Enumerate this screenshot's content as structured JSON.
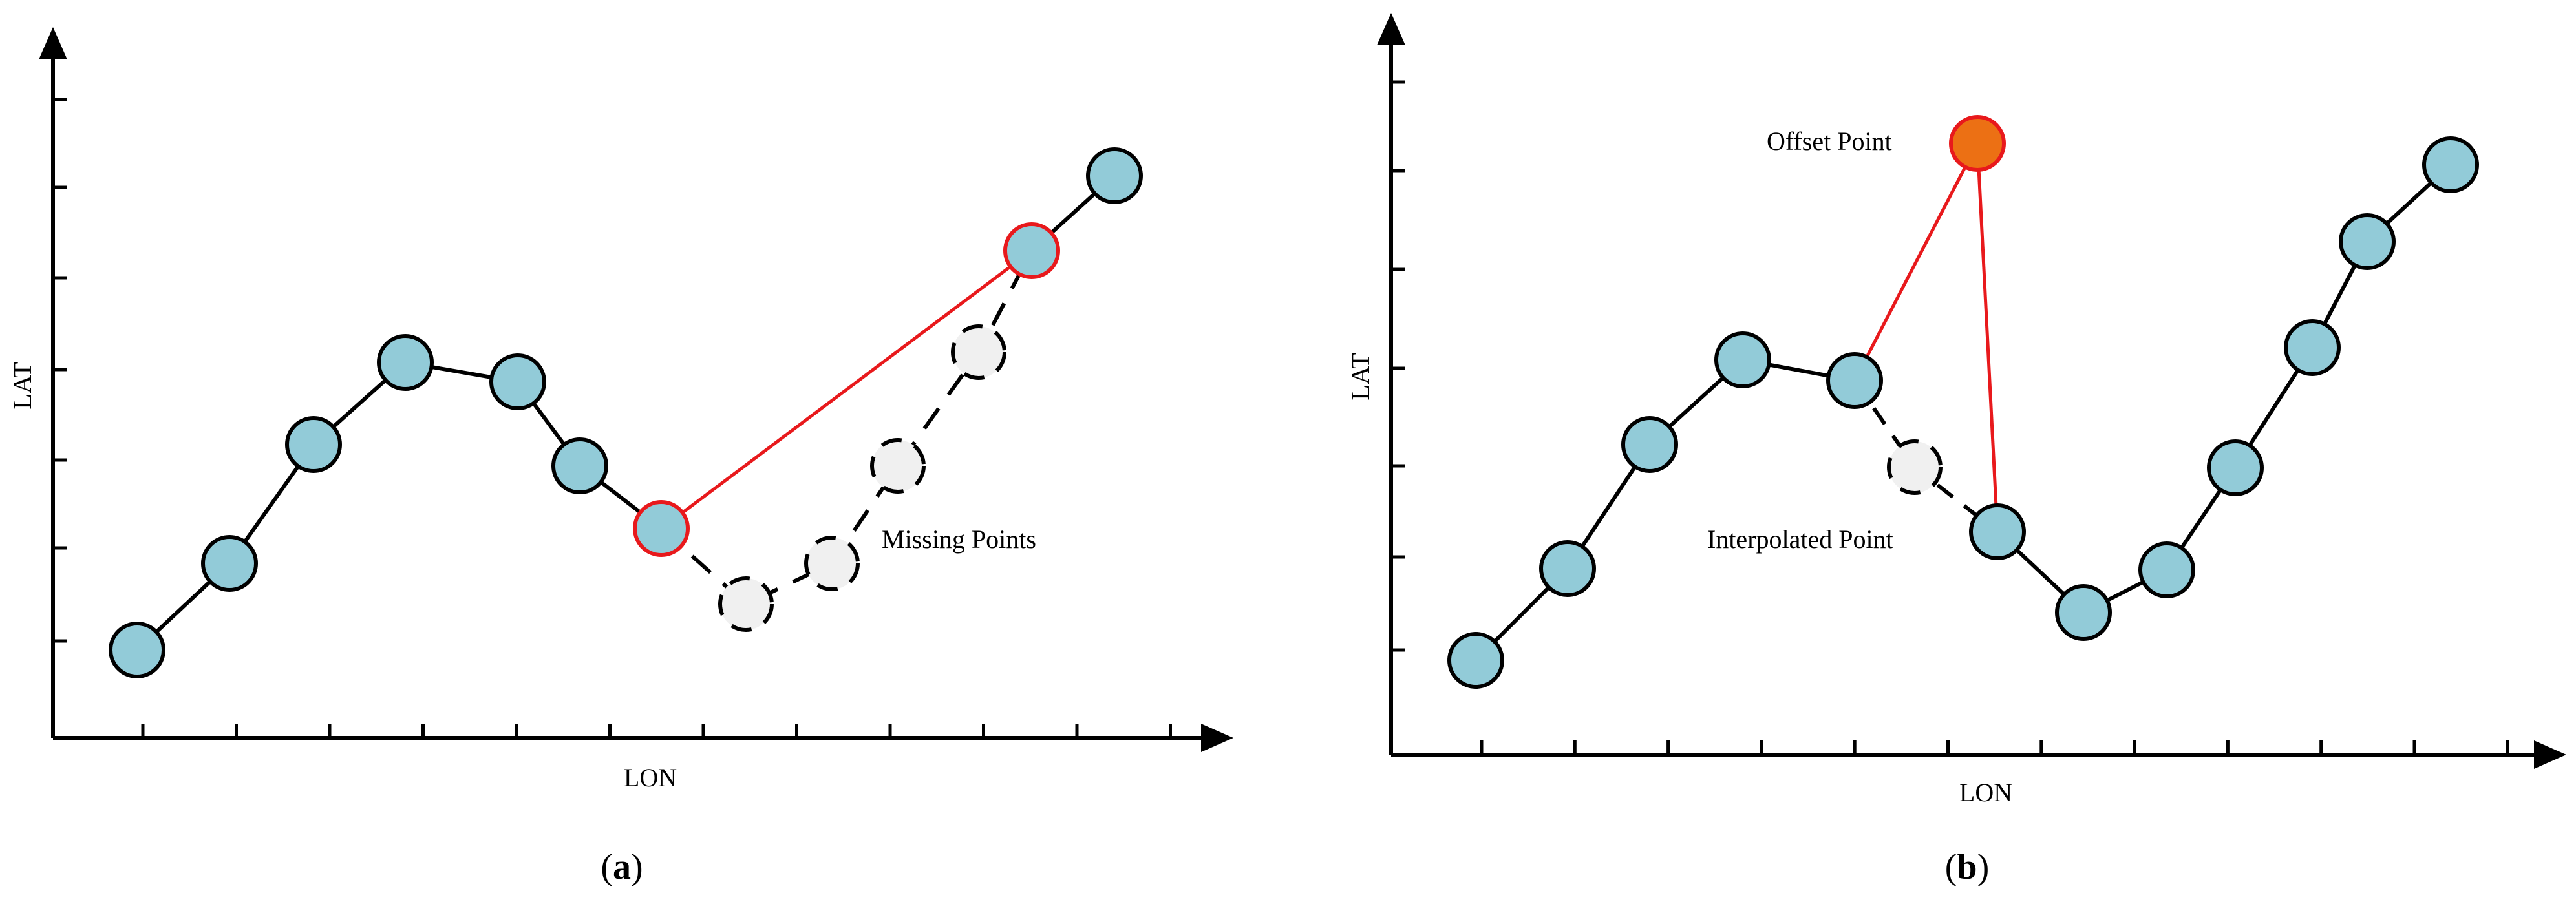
{
  "panels": [
    {
      "id": "a",
      "caption": {
        "open": "(",
        "letter": "a",
        "close": ")"
      },
      "x_label": "LON",
      "y_label": "LAT",
      "annotations": [
        {
          "text": "Missing Points"
        }
      ]
    },
    {
      "id": "b",
      "caption": {
        "open": "(",
        "letter": "b",
        "close": ")"
      },
      "x_label": "LON",
      "y_label": "LAT",
      "annotations": [
        {
          "text": "Offset Point"
        },
        {
          "text": "Interpolated Point"
        }
      ]
    }
  ],
  "colors": {
    "point_fill": "#92cbd8",
    "missing_point_fill": "#f0f0f0",
    "offset_point_fill": "#ec7014",
    "highlight_stroke": "#e8191c",
    "line": "#000000"
  }
}
